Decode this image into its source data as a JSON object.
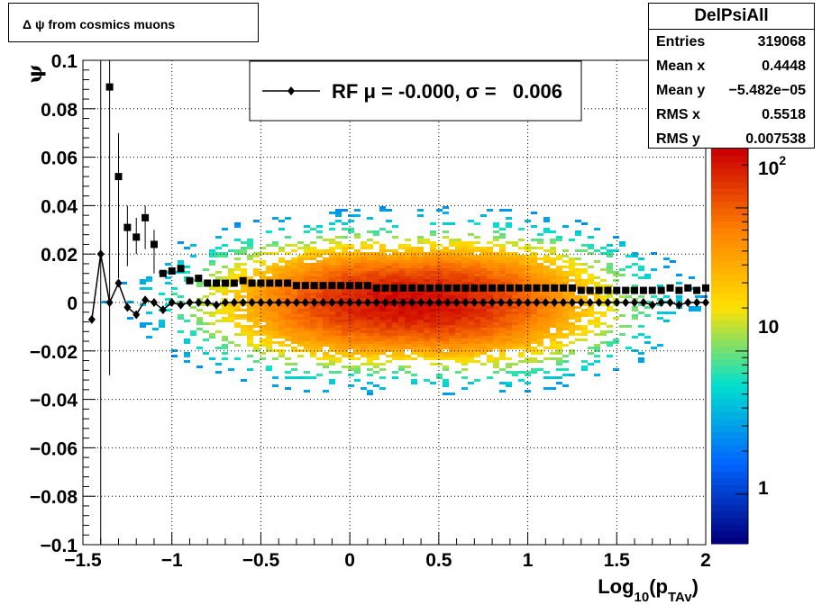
{
  "title": "Δ ψ from cosmics muons",
  "stats": {
    "name": "DelPsiAll",
    "rows": [
      {
        "label": "Entries",
        "value": "319068"
      },
      {
        "label": "Mean x",
        "value": "0.4448"
      },
      {
        "label": "Mean y",
        "value": "−5.482e−05"
      },
      {
        "label": "RMS x",
        "value": "0.5518"
      },
      {
        "label": "RMS y",
        "value": "0.007538"
      }
    ]
  },
  "chart_data": {
    "type": "heatmap",
    "xlabel": "Log10(pTAv)",
    "ylabel": "ψ",
    "xlim": [
      -1.5,
      2
    ],
    "ylim": [
      -0.1,
      0.1
    ],
    "x_ticks": [
      "−1.5",
      "−1",
      "−0.5",
      "0",
      "0.5",
      "1",
      "1.5",
      "2"
    ],
    "y_ticks": [
      "−0.1",
      "−0.08",
      "−0.06",
      "−0.04",
      "−0.02",
      "0",
      "0.02",
      "0.04",
      "0.06",
      "0.08",
      "0.1"
    ],
    "grid": true,
    "colorbar": {
      "scale": "log",
      "labels": [
        "1",
        "10",
        "10^2"
      ],
      "colors": [
        "#00007f",
        "#0066ff",
        "#00e0d0",
        "#ffe000",
        "#ff8000",
        "#cc0000"
      ]
    },
    "legend": {
      "label": "RF μ = -0.000, σ =   0.006",
      "position": "top-center"
    },
    "series": [
      {
        "name": "RF",
        "marker": "diamond",
        "x": [
          -1.45,
          -1.4,
          -1.35,
          -1.3,
          -1.25,
          -1.2,
          -1.15,
          -1.1,
          -1.05,
          -1.0,
          -0.95,
          -0.9,
          -0.85,
          -0.8,
          -0.75,
          -0.7,
          -0.65,
          -0.6,
          -0.55,
          -0.5,
          -0.45,
          -0.4,
          -0.35,
          -0.3,
          -0.25,
          -0.2,
          -0.15,
          -0.1,
          -0.05,
          0.0,
          0.05,
          0.1,
          0.15,
          0.2,
          0.25,
          0.3,
          0.35,
          0.4,
          0.45,
          0.5,
          0.55,
          0.6,
          0.65,
          0.7,
          0.75,
          0.8,
          0.85,
          0.9,
          0.95,
          1.0,
          1.05,
          1.1,
          1.15,
          1.2,
          1.25,
          1.3,
          1.35,
          1.4,
          1.45,
          1.5,
          1.55,
          1.6,
          1.65,
          1.7,
          1.75,
          1.8,
          1.85,
          1.9,
          1.95,
          2.0
        ],
        "y": [
          -0.007,
          0.02,
          0.0,
          0.008,
          -0.002,
          -0.005,
          0.001,
          0.0,
          -0.003,
          0.0,
          -0.001,
          0.0,
          0.0,
          0.0,
          -0.001,
          0.0,
          0.0,
          0.0,
          0.0,
          0.0,
          0.0,
          0.0,
          0.0,
          0.0,
          0.0,
          0.0,
          0.0,
          0.0,
          0.0,
          0.0,
          0.0,
          0.0,
          0.0,
          0.0,
          0.0,
          0.0,
          0.0,
          0.0,
          0.0,
          0.0,
          0.0,
          0.0,
          0.0,
          0.0,
          0.0,
          0.0,
          0.0,
          0.0,
          0.0,
          0.0,
          0.0,
          0.0,
          0.0,
          0.0,
          0.0,
          0.0,
          0.0,
          0.0,
          0.0,
          0.0,
          0.0,
          0.0,
          0.0,
          -0.001,
          0.0,
          0.0,
          -0.001,
          0.0,
          0.0,
          0.0
        ]
      },
      {
        "name": "",
        "marker": "square",
        "x": [
          -1.35,
          -1.3,
          -1.25,
          -1.2,
          -1.15,
          -1.1,
          -1.05,
          -1.0,
          -0.95,
          -0.9,
          -0.85,
          -0.8,
          -0.75,
          -0.7,
          -0.65,
          -0.6,
          -0.55,
          -0.5,
          -0.45,
          -0.4,
          -0.35,
          -0.3,
          -0.25,
          -0.2,
          -0.15,
          -0.1,
          -0.05,
          0.0,
          0.05,
          0.1,
          0.15,
          0.2,
          0.25,
          0.3,
          0.35,
          0.4,
          0.45,
          0.5,
          0.55,
          0.6,
          0.65,
          0.7,
          0.75,
          0.8,
          0.85,
          0.9,
          0.95,
          1.0,
          1.05,
          1.1,
          1.15,
          1.2,
          1.25,
          1.3,
          1.35,
          1.4,
          1.45,
          1.5,
          1.55,
          1.6,
          1.65,
          1.7,
          1.75,
          1.8,
          1.85,
          1.9,
          1.95,
          2.0
        ],
        "y": [
          0.089,
          0.052,
          0.031,
          0.027,
          0.035,
          0.024,
          0.012,
          0.013,
          0.014,
          0.009,
          0.01,
          0.008,
          0.008,
          0.008,
          0.008,
          0.009,
          0.008,
          0.008,
          0.008,
          0.008,
          0.008,
          0.007,
          0.007,
          0.007,
          0.007,
          0.007,
          0.007,
          0.007,
          0.007,
          0.007,
          0.006,
          0.006,
          0.006,
          0.006,
          0.006,
          0.006,
          0.006,
          0.006,
          0.006,
          0.006,
          0.006,
          0.006,
          0.006,
          0.006,
          0.006,
          0.006,
          0.006,
          0.006,
          0.006,
          0.006,
          0.006,
          0.006,
          0.006,
          0.005,
          0.005,
          0.005,
          0.005,
          0.005,
          0.005,
          0.005,
          0.005,
          0.005,
          0.005,
          0.006,
          0.005,
          0.006,
          0.005,
          0.006
        ]
      }
    ]
  }
}
